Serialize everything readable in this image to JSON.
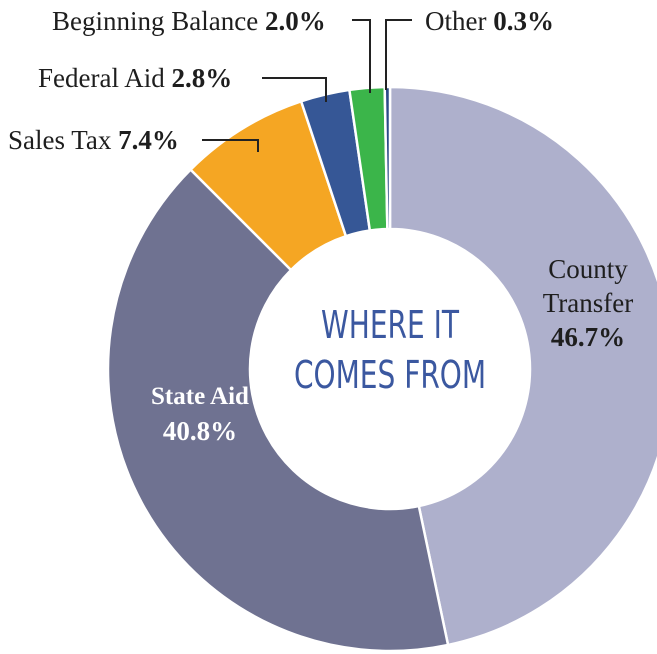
{
  "chart_data": {
    "type": "donut",
    "center_text": [
      "WHERE IT",
      "COMES FROM"
    ],
    "categories": [
      "County Transfer",
      "State Aid",
      "Sales Tax",
      "Federal Aid",
      "Beginning Balance",
      "Other"
    ],
    "values": [
      46.7,
      40.8,
      7.4,
      2.8,
      2.0,
      0.3
    ],
    "value_labels": [
      "46.7%",
      "40.8%",
      "7.4%",
      "2.8%",
      "2.0%",
      "0.3%"
    ],
    "colors": [
      "#aeb0cc",
      "#6f7291",
      "#f5a623",
      "#365796",
      "#3bb54a",
      "#2b4a87"
    ]
  }
}
